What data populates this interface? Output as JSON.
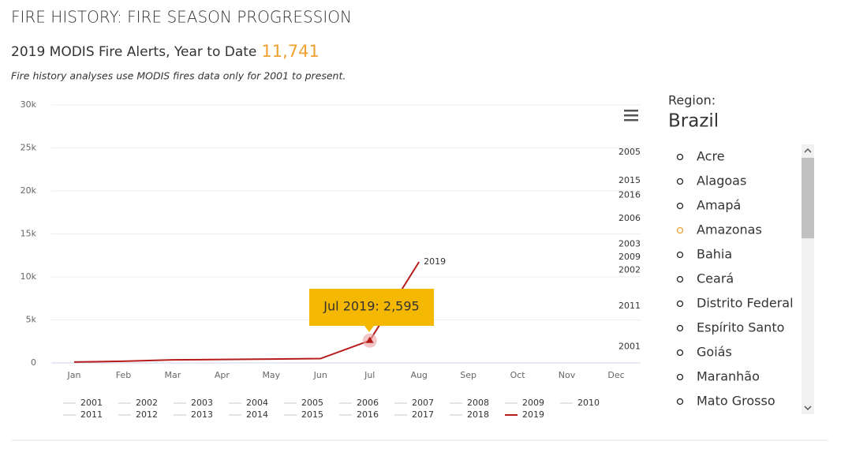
{
  "header": {
    "title": "FIRE HISTORY: FIRE SEASON PROGRESSION",
    "subtitle": "2019 MODIS Fire Alerts, Year to Date",
    "total": "11,741",
    "note": "Fire history analyses use MODIS fires data only for 2001 to present."
  },
  "chart_data": {
    "type": "line",
    "categories": [
      "Jan",
      "Feb",
      "Mar",
      "Apr",
      "May",
      "Jun",
      "Jul",
      "Aug",
      "Sep",
      "Oct",
      "Nov",
      "Dec"
    ],
    "ylim": [
      0,
      30000
    ],
    "yticks": [
      0,
      {
        "value": 5000,
        "label": "5k"
      },
      {
        "value": 10000,
        "label": "10k"
      },
      {
        "value": 15000,
        "label": "15k"
      },
      {
        "value": 20000,
        "label": "20k"
      },
      {
        "value": 25000,
        "label": "25k"
      },
      {
        "value": 30000,
        "label": "30k"
      }
    ],
    "grid": true,
    "legend": "bottom",
    "series": [
      {
        "name": "2001",
        "color": "#e4e4e4",
        "values": [
          null,
          null,
          null,
          null,
          null,
          null,
          null,
          null,
          null,
          null,
          null,
          null
        ]
      },
      {
        "name": "2002",
        "color": "#e4e4e4",
        "values": [
          null,
          null,
          null,
          null,
          null,
          null,
          null,
          null,
          null,
          null,
          null,
          null
        ]
      },
      {
        "name": "2003",
        "color": "#e4e4e4",
        "values": [
          null,
          null,
          null,
          null,
          null,
          null,
          null,
          null,
          null,
          null,
          null,
          null
        ]
      },
      {
        "name": "2004",
        "color": "#e4e4e4",
        "values": [
          null,
          null,
          null,
          null,
          null,
          null,
          null,
          null,
          null,
          null,
          null,
          null
        ]
      },
      {
        "name": "2005",
        "color": "#e4e4e4",
        "values": [
          null,
          null,
          null,
          null,
          null,
          null,
          null,
          null,
          null,
          null,
          null,
          null
        ]
      },
      {
        "name": "2006",
        "color": "#e4e4e4",
        "values": [
          null,
          null,
          null,
          null,
          null,
          null,
          null,
          null,
          null,
          null,
          null,
          null
        ]
      },
      {
        "name": "2007",
        "color": "#e4e4e4",
        "values": [
          null,
          null,
          null,
          null,
          null,
          null,
          null,
          null,
          null,
          null,
          null,
          null
        ]
      },
      {
        "name": "2008",
        "color": "#e4e4e4",
        "values": [
          null,
          null,
          null,
          null,
          null,
          null,
          null,
          null,
          null,
          null,
          null,
          null
        ]
      },
      {
        "name": "2009",
        "color": "#e4e4e4",
        "values": [
          null,
          null,
          null,
          null,
          null,
          null,
          null,
          null,
          null,
          null,
          null,
          null
        ]
      },
      {
        "name": "2010",
        "color": "#e4e4e4",
        "values": [
          null,
          null,
          null,
          null,
          null,
          null,
          null,
          null,
          null,
          null,
          null,
          null
        ]
      },
      {
        "name": "2011",
        "color": "#e4e4e4",
        "values": [
          null,
          null,
          null,
          null,
          null,
          null,
          null,
          null,
          null,
          null,
          null,
          null
        ]
      },
      {
        "name": "2012",
        "color": "#e4e4e4",
        "values": [
          null,
          null,
          null,
          null,
          null,
          null,
          null,
          null,
          null,
          null,
          null,
          null
        ]
      },
      {
        "name": "2013",
        "color": "#e4e4e4",
        "values": [
          null,
          null,
          null,
          null,
          null,
          null,
          null,
          null,
          null,
          null,
          null,
          null
        ]
      },
      {
        "name": "2014",
        "color": "#e4e4e4",
        "values": [
          null,
          null,
          null,
          null,
          null,
          null,
          null,
          null,
          null,
          null,
          null,
          null
        ]
      },
      {
        "name": "2015",
        "color": "#e4e4e4",
        "values": [
          null,
          null,
          null,
          null,
          null,
          null,
          null,
          null,
          null,
          null,
          null,
          null
        ]
      },
      {
        "name": "2016",
        "color": "#e4e4e4",
        "values": [
          null,
          null,
          null,
          null,
          null,
          null,
          null,
          null,
          null,
          null,
          null,
          null
        ]
      },
      {
        "name": "2017",
        "color": "#e4e4e4",
        "values": [
          null,
          null,
          null,
          null,
          null,
          null,
          null,
          null,
          null,
          null,
          null,
          null
        ]
      },
      {
        "name": "2018",
        "color": "#e4e4e4",
        "values": [
          null,
          null,
          null,
          null,
          null,
          null,
          null,
          null,
          null,
          null,
          null,
          null
        ]
      },
      {
        "name": "2019",
        "color": "#b71c1c",
        "values": [
          100,
          200,
          350,
          400,
          450,
          500,
          2595,
          11741,
          null,
          null,
          null,
          null
        ]
      }
    ],
    "annotations": [
      {
        "label": "2005",
        "y": 24500
      },
      {
        "label": "2015",
        "y": 21200
      },
      {
        "label": "2016",
        "y": 19500
      },
      {
        "label": "2006",
        "y": 16800
      },
      {
        "label": "2003",
        "y": 13800
      },
      {
        "label": "2009",
        "y": 12300
      },
      {
        "label": "2002",
        "y": 10800
      },
      {
        "label": "2011",
        "y": 6600
      },
      {
        "label": "2001",
        "y": 1900
      }
    ],
    "tooltip": {
      "label": "Jul 2019: 2,595",
      "series": 18,
      "index": 6,
      "color": "#f5b800"
    }
  },
  "sidebar": {
    "label": "Region:",
    "region": "Brazil",
    "selected_index": 3,
    "selected_color": "#f0a030",
    "items": [
      "Acre",
      "Alagoas",
      "Amapá",
      "Amazonas",
      "Bahia",
      "Ceará",
      "Distrito Federal",
      "Espírito Santo",
      "Goiás",
      "Maranhão",
      "Mato Grosso"
    ]
  }
}
